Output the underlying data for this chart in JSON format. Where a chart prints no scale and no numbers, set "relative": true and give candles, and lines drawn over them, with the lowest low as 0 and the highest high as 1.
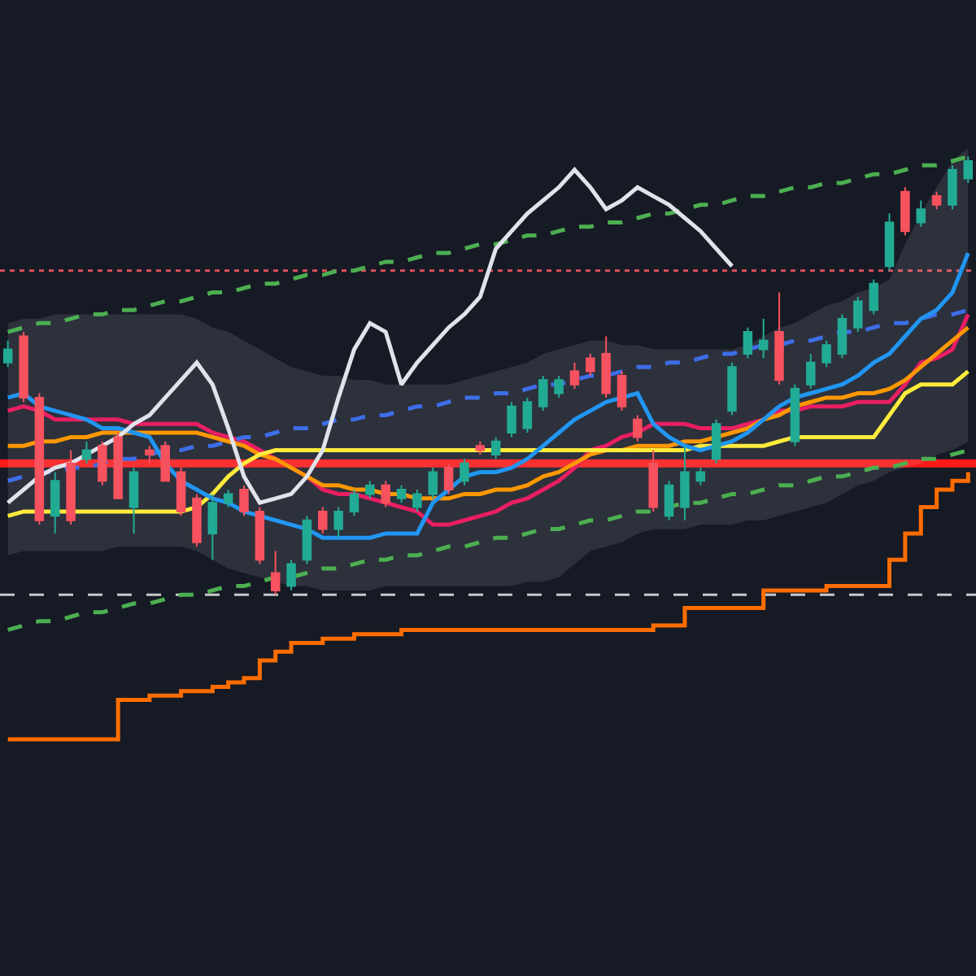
{
  "chart_data": {
    "type": "candlestick",
    "relative": true,
    "categories": [
      null,
      null,
      null,
      null,
      null,
      null,
      null,
      null,
      null,
      null,
      null,
      null,
      null,
      null,
      null,
      null,
      null,
      null,
      null,
      null,
      null,
      null,
      null,
      null,
      null,
      null,
      null,
      null,
      null,
      null,
      null,
      null,
      null,
      null,
      null,
      null,
      null,
      null,
      null,
      null,
      null,
      null,
      null,
      null,
      null,
      null,
      null,
      null,
      null,
      null,
      null,
      null,
      null,
      null,
      null,
      null,
      null,
      null,
      null,
      null,
      null,
      null
    ],
    "ohlc": [
      [
        0.53,
        0.58,
        0.52,
        0.56
      ],
      [
        0.59,
        0.6,
        0.44,
        0.45
      ],
      [
        0.45,
        0.46,
        0.16,
        0.17
      ],
      [
        0.18,
        0.28,
        0.14,
        0.26
      ],
      [
        0.3,
        0.33,
        0.16,
        0.17
      ],
      [
        0.31,
        0.35,
        0.3,
        0.33
      ],
      [
        0.34,
        0.35,
        0.25,
        0.26
      ],
      [
        0.36,
        0.37,
        0.22,
        0.22
      ],
      [
        0.2,
        0.29,
        0.14,
        0.28
      ],
      [
        0.33,
        0.34,
        0.3,
        0.32
      ],
      [
        0.34,
        0.35,
        0.26,
        0.26
      ],
      [
        0.28,
        0.29,
        0.18,
        0.19
      ],
      [
        0.22,
        0.23,
        0.11,
        0.12
      ],
      [
        0.14,
        0.23,
        0.08,
        0.21
      ],
      [
        0.21,
        0.24,
        0.2,
        0.23
      ],
      [
        0.24,
        0.25,
        0.18,
        0.19
      ],
      [
        0.19,
        0.2,
        0.07,
        0.08
      ],
      [
        0.05,
        0.1,
        0,
        0.01
      ],
      [
        0.02,
        0.08,
        0.01,
        0.07
      ],
      [
        0.08,
        0.18,
        0.07,
        0.17
      ],
      [
        0.19,
        0.2,
        0.14,
        0.15
      ],
      [
        0.15,
        0.2,
        0.13,
        0.19
      ],
      [
        0.19,
        0.24,
        0.18,
        0.23
      ],
      [
        0.23,
        0.26,
        0.22,
        0.25
      ],
      [
        0.25,
        0.26,
        0.2,
        0.21
      ],
      [
        0.22,
        0.25,
        0.21,
        0.24
      ],
      [
        0.2,
        0.24,
        0.19,
        0.23
      ],
      [
        0.23,
        0.29,
        0.22,
        0.28
      ],
      [
        0.29,
        0.3,
        0.23,
        0.24
      ],
      [
        0.26,
        0.31,
        0.25,
        0.3
      ],
      [
        0.34,
        0.35,
        0.32,
        0.33
      ],
      [
        0.32,
        0.36,
        0.31,
        0.35
      ],
      [
        0.37,
        0.44,
        0.36,
        0.43
      ],
      [
        0.38,
        0.45,
        0.37,
        0.44
      ],
      [
        0.43,
        0.5,
        0.42,
        0.49
      ],
      [
        0.46,
        0.5,
        0.45,
        0.49
      ],
      [
        0.51,
        0.53,
        0.47,
        0.48
      ],
      [
        0.54,
        0.55,
        0.5,
        0.51
      ],
      [
        0.55,
        0.59,
        0.45,
        0.46
      ],
      [
        0.5,
        0.51,
        0.42,
        0.43
      ],
      [
        0.4,
        0.41,
        0.35,
        0.36
      ],
      [
        0.3,
        0.33,
        0.19,
        0.2
      ],
      [
        0.18,
        0.26,
        0.17,
        0.25
      ],
      [
        0.2,
        0.34,
        0.17,
        0.28
      ],
      [
        0.26,
        0.29,
        0.25,
        0.28
      ],
      [
        0.31,
        0.4,
        0.3,
        0.39
      ],
      [
        0.42,
        0.53,
        0.41,
        0.52
      ],
      [
        0.55,
        0.61,
        0.54,
        0.6
      ],
      [
        0.56,
        0.63,
        0.54,
        0.58
      ],
      [
        0.6,
        0.69,
        0.48,
        0.49
      ],
      [
        0.35,
        0.48,
        0.34,
        0.47
      ],
      [
        0.48,
        0.55,
        0.47,
        0.53
      ],
      [
        0.53,
        0.58,
        0.52,
        0.57
      ],
      [
        0.55,
        0.64,
        0.54,
        0.63
      ],
      [
        0.61,
        0.68,
        0.6,
        0.67
      ],
      [
        0.65,
        0.72,
        0.64,
        0.71
      ],
      [
        0.75,
        0.87,
        0.74,
        0.85
      ],
      [
        0.92,
        0.93,
        0.82,
        0.83
      ],
      [
        0.85,
        0.9,
        0.84,
        0.88
      ],
      [
        0.91,
        0.92,
        0.88,
        0.89
      ],
      [
        0.89,
        0.98,
        0.88,
        0.97
      ],
      [
        0.95,
        1,
        0.94,
        0.99
      ]
    ],
    "colors": [
      "#22ab94",
      "#f7525f",
      "#f7525f",
      "#22ab94",
      "#f7525f",
      "#22ab94",
      "#f7525f",
      "#f7525f",
      "#22ab94",
      "#f7525f",
      "#f7525f",
      "#f7525f",
      "#f7525f",
      "#22ab94",
      "#22ab94",
      "#f7525f",
      "#f7525f",
      "#f7525f",
      "#22ab94",
      "#22ab94",
      "#f7525f",
      "#22ab94",
      "#22ab94",
      "#22ab94",
      "#f7525f",
      "#22ab94",
      "#22ab94",
      "#22ab94",
      "#f7525f",
      "#22ab94",
      "#f7525f",
      "#22ab94",
      "#22ab94",
      "#22ab94",
      "#22ab94",
      "#22ab94",
      "#f7525f",
      "#f7525f",
      "#f7525f",
      "#f7525f",
      "#f7525f",
      "#f7525f",
      "#22ab94",
      "#22ab94",
      "#22ab94",
      "#22ab94",
      "#22ab94",
      "#22ab94",
      "#22ab94",
      "#f7525f",
      "#22ab94",
      "#22ab94",
      "#22ab94",
      "#22ab94",
      "#22ab94",
      "#22ab94",
      "#22ab94",
      "#f7525f",
      "#22ab94",
      "#f7525f",
      "#22ab94",
      "#22ab94"
    ],
    "series": [
      {
        "type": "line",
        "color": "#e91e63",
        "values": [
          0.42,
          0.43,
          0.42,
          0.4,
          0.4,
          0.4,
          0.4,
          0.4,
          0.39,
          0.39,
          0.39,
          0.39,
          0.39,
          0.37,
          0.36,
          0.35,
          0.33,
          0.31,
          0.29,
          0.27,
          0.24,
          0.23,
          0.23,
          0.22,
          0.21,
          0.2,
          0.19,
          0.16,
          0.16,
          0.17,
          0.18,
          0.19,
          0.21,
          0.22,
          0.24,
          0.26,
          0.29,
          0.33,
          0.34,
          0.36,
          0.37,
          0.39,
          0.39,
          0.39,
          0.38,
          0.38,
          0.38,
          0.39,
          0.4,
          0.42,
          0.42,
          0.43,
          0.43,
          0.43,
          0.44,
          0.44,
          0.44,
          0.48,
          0.53,
          0.54,
          0.56,
          0.64
        ],
        "upper": [
          0.62,
          0.63,
          0.63,
          0.64,
          0.64,
          0.64,
          0.64,
          0.64,
          0.64,
          0.64,
          0.64,
          0.64,
          0.63,
          0.61,
          0.6,
          0.58,
          0.56,
          0.54,
          0.52,
          0.51,
          0.5,
          0.5,
          0.49,
          0.49,
          0.48,
          0.48,
          0.48,
          0.48,
          0.48,
          0.49,
          0.5,
          0.51,
          0.52,
          0.53,
          0.55,
          0.56,
          0.57,
          0.58,
          0.58,
          0.57,
          0.57,
          0.56,
          0.56,
          0.56,
          0.56,
          0.56,
          0.56,
          0.57,
          0.59,
          0.61,
          0.62,
          0.64,
          0.66,
          0.67,
          0.69,
          0.7,
          0.72,
          0.8,
          0.87,
          0.93,
          0.99,
          1.02
        ],
        "lower": [
          0.09,
          0.1,
          0.1,
          0.1,
          0.1,
          0.1,
          0.1,
          0.11,
          0.11,
          0.11,
          0.11,
          0.11,
          0.1,
          0.08,
          0.06,
          0.05,
          0.04,
          0.03,
          0.02,
          0.02,
          0.01,
          0.01,
          0.01,
          0.01,
          0.02,
          0.02,
          0.02,
          0.02,
          0.02,
          0.02,
          0.02,
          0.02,
          0.02,
          0.03,
          0.03,
          0.04,
          0.07,
          0.1,
          0.11,
          0.12,
          0.14,
          0.15,
          0.15,
          0.15,
          0.16,
          0.16,
          0.16,
          0.17,
          0.17,
          0.18,
          0.19,
          0.2,
          0.21,
          0.23,
          0.25,
          0.26,
          0.28,
          0.29,
          0.3,
          0.32,
          0.33,
          0.35
        ]
      },
      {
        "type": "line",
        "color": "#4caf50",
        "line_style": "dashed",
        "values": [
          0.6,
          0.61,
          0.62,
          0.62,
          0.63,
          0.64,
          0.64,
          0.65,
          0.65,
          0.66,
          0.67,
          0.67,
          0.68,
          0.69,
          0.69,
          0.7,
          0.71,
          0.71,
          0.72,
          0.73,
          0.73,
          0.74,
          0.74,
          0.75,
          0.76,
          0.76,
          0.77,
          0.78,
          0.78,
          0.79,
          0.8,
          0.8,
          0.81,
          0.82,
          0.82,
          0.83,
          0.84,
          0.84,
          0.85,
          0.85,
          0.86,
          0.87,
          0.87,
          0.88,
          0.89,
          0.89,
          0.9,
          0.91,
          0.91,
          0.92,
          0.93,
          0.93,
          0.94,
          0.94,
          0.95,
          0.96,
          0.96,
          0.97,
          0.98,
          0.98,
          0.99,
          1.0
        ]
      },
      {
        "type": "line",
        "color": "#4caf50",
        "line_style": "dashed",
        "values": [
          -0.08,
          -0.07,
          -0.06,
          -0.06,
          -0.05,
          -0.04,
          -0.04,
          -0.03,
          -0.02,
          -0.02,
          -0.01,
          0.0,
          0.0,
          0.01,
          0.02,
          0.02,
          0.03,
          0.04,
          0.04,
          0.05,
          0.06,
          0.06,
          0.07,
          0.08,
          0.08,
          0.09,
          0.09,
          0.1,
          0.11,
          0.11,
          0.12,
          0.13,
          0.13,
          0.14,
          0.15,
          0.15,
          0.16,
          0.17,
          0.17,
          0.18,
          0.19,
          0.19,
          0.2,
          0.21,
          0.21,
          0.22,
          0.23,
          0.23,
          0.24,
          0.25,
          0.25,
          0.26,
          0.27,
          0.27,
          0.28,
          0.29,
          0.29,
          0.3,
          0.31,
          0.31,
          0.32,
          0.33
        ]
      },
      {
        "type": "line",
        "color": "#3d6ee8",
        "line_style": "dashed",
        "values": [
          0.26,
          0.27,
          0.28,
          0.28,
          0.29,
          0.29,
          0.3,
          0.31,
          0.31,
          0.32,
          0.33,
          0.33,
          0.34,
          0.34,
          0.35,
          0.36,
          0.36,
          0.37,
          0.38,
          0.38,
          0.39,
          0.4,
          0.4,
          0.41,
          0.41,
          0.42,
          0.43,
          0.43,
          0.44,
          0.45,
          0.45,
          0.46,
          0.46,
          0.47,
          0.48,
          0.48,
          0.49,
          0.5,
          0.5,
          0.51,
          0.52,
          0.52,
          0.53,
          0.53,
          0.54,
          0.55,
          0.55,
          0.56,
          0.57,
          0.57,
          0.58,
          0.58,
          0.59,
          0.6,
          0.6,
          0.61,
          0.62,
          0.62,
          0.63,
          0.64,
          0.64,
          0.65
        ]
      },
      {
        "type": "line",
        "color": "#ff9800",
        "values": [
          0.34,
          0.34,
          0.35,
          0.35,
          0.36,
          0.36,
          0.37,
          0.37,
          0.37,
          0.37,
          0.37,
          0.37,
          0.37,
          0.36,
          0.35,
          0.34,
          0.32,
          0.31,
          0.29,
          0.27,
          0.25,
          0.25,
          0.24,
          0.24,
          0.23,
          0.23,
          0.22,
          0.22,
          0.22,
          0.23,
          0.23,
          0.24,
          0.24,
          0.25,
          0.27,
          0.28,
          0.3,
          0.32,
          0.33,
          0.33,
          0.34,
          0.34,
          0.34,
          0.35,
          0.35,
          0.36,
          0.37,
          0.38,
          0.4,
          0.41,
          0.43,
          0.44,
          0.45,
          0.45,
          0.46,
          0.46,
          0.47,
          0.49,
          0.52,
          0.55,
          0.58,
          0.61
        ]
      },
      {
        "type": "line",
        "color": "#ffeb3b",
        "values": [
          0.18,
          0.19,
          0.19,
          0.19,
          0.19,
          0.19,
          0.19,
          0.19,
          0.19,
          0.19,
          0.19,
          0.19,
          0.2,
          0.23,
          0.27,
          0.3,
          0.32,
          0.33,
          0.33,
          0.33,
          0.33,
          0.33,
          0.33,
          0.33,
          0.33,
          0.33,
          0.33,
          0.33,
          0.33,
          0.33,
          0.33,
          0.33,
          0.33,
          0.33,
          0.33,
          0.33,
          0.33,
          0.33,
          0.33,
          0.33,
          0.33,
          0.33,
          0.33,
          0.33,
          0.34,
          0.34,
          0.34,
          0.34,
          0.34,
          0.35,
          0.36,
          0.36,
          0.36,
          0.36,
          0.36,
          0.36,
          0.41,
          0.46,
          0.48,
          0.48,
          0.48,
          0.51
        ]
      },
      {
        "type": "step",
        "color": "#ff6d00",
        "values": [
          -0.33,
          -0.33,
          -0.33,
          -0.33,
          -0.33,
          -0.33,
          -0.33,
          -0.24,
          -0.24,
          -0.23,
          -0.23,
          -0.22,
          -0.22,
          -0.21,
          -0.2,
          -0.19,
          -0.15,
          -0.13,
          -0.11,
          -0.11,
          -0.1,
          -0.1,
          -0.09,
          -0.09,
          -0.09,
          -0.08,
          -0.08,
          -0.08,
          -0.08,
          -0.08,
          -0.08,
          -0.08,
          -0.08,
          -0.08,
          -0.08,
          -0.08,
          -0.08,
          -0.08,
          -0.08,
          -0.08,
          -0.08,
          -0.07,
          -0.07,
          -0.03,
          -0.03,
          -0.03,
          -0.03,
          -0.03,
          0.01,
          0.01,
          0.01,
          0.01,
          0.02,
          0.02,
          0.02,
          0.02,
          0.08,
          0.14,
          0.2,
          0.24,
          0.26,
          0.28
        ]
      },
      {
        "type": "line",
        "color": "#2196f3",
        "values": [
          0.45,
          0.46,
          0.43,
          0.42,
          0.41,
          0.4,
          0.38,
          0.38,
          0.37,
          0.36,
          0.3,
          0.26,
          0.24,
          0.22,
          0.21,
          0.19,
          0.18,
          0.17,
          0.16,
          0.15,
          0.13,
          0.13,
          0.13,
          0.13,
          0.14,
          0.14,
          0.14,
          0.21,
          0.24,
          0.27,
          0.28,
          0.28,
          0.29,
          0.31,
          0.34,
          0.37,
          0.4,
          0.42,
          0.44,
          0.45,
          0.46,
          0.39,
          0.36,
          0.34,
          0.33,
          0.34,
          0.35,
          0.37,
          0.4,
          0.43,
          0.45,
          0.46,
          0.47,
          0.48,
          0.5,
          0.53,
          0.55,
          0.59,
          0.63,
          0.65,
          0.69,
          0.78
        ]
      },
      {
        "type": "line",
        "color": "#e0e3eb",
        "values": [
          0.21,
          0.24,
          0.27,
          0.29,
          0.3,
          0.32,
          0.34,
          0.36,
          0.39,
          0.41,
          0.45,
          0.49,
          0.53,
          0.48,
          0.38,
          0.27,
          0.21,
          0.22,
          0.23,
          0.27,
          0.33,
          0.45,
          0.56,
          0.62,
          0.6,
          0.48,
          0.53,
          0.57,
          0.61,
          0.64,
          0.68,
          0.79,
          0.83,
          0.87,
          0.9,
          0.93,
          0.97,
          0.93,
          0.88,
          0.9,
          0.93,
          0.91,
          0.89,
          0.86,
          0.83,
          0.79,
          0.75,
          null,
          null,
          null,
          null,
          null,
          null,
          null,
          null,
          null,
          null,
          null,
          null,
          null,
          null,
          null
        ]
      }
    ],
    "ref_lines": [
      {
        "axis": "y",
        "value": 0.74,
        "color": "#e0505a",
        "line_style": "dotted"
      },
      {
        "axis": "y",
        "value": 0.0,
        "color": "#c8c8c8",
        "line_style": "dashed"
      },
      {
        "axis": "y",
        "value": 0.3,
        "color": "#ff1a1a",
        "line_style": "solid"
      }
    ]
  }
}
